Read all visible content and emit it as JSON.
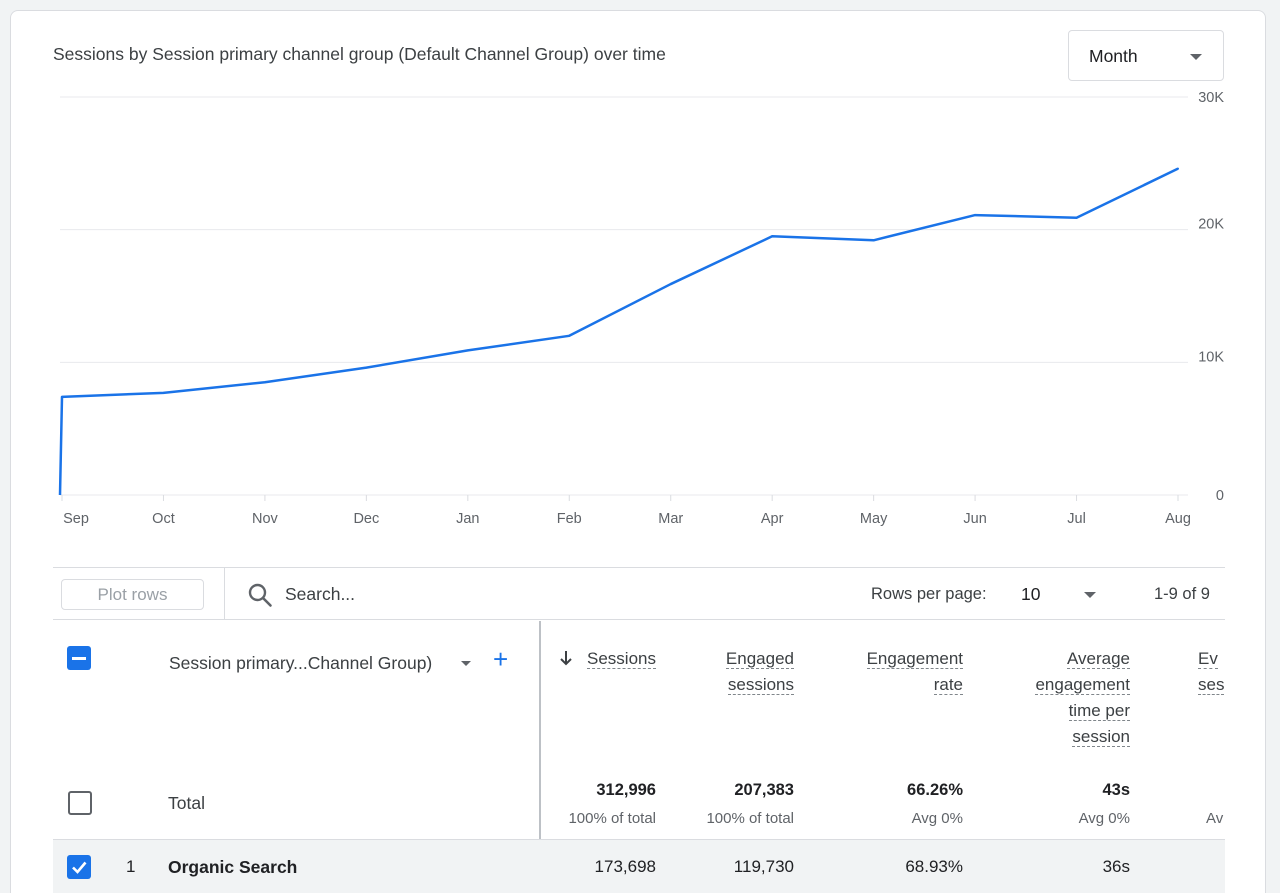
{
  "chart_card": {
    "title": "Sessions by Session primary channel group (Default Channel Group) over time",
    "period_select": {
      "value": "Month"
    }
  },
  "chart_data": {
    "type": "line",
    "title": "Sessions by Session primary channel group (Default Channel Group) over time",
    "x": [
      "Sep",
      "Oct",
      "Nov",
      "Dec",
      "Jan",
      "Feb",
      "Mar",
      "Apr",
      "May",
      "Jun",
      "Jul",
      "Aug"
    ],
    "series": [
      {
        "values": [
          7400,
          7700,
          8500,
          9600,
          10900,
          12000,
          15900,
          19500,
          19200,
          21100,
          20900,
          24600
        ],
        "color": "#1a73e8"
      }
    ],
    "y_start_value": 0,
    "ylim": [
      0,
      30000
    ],
    "yticks": [
      "0",
      "10K",
      "20K",
      "30K"
    ],
    "y_axis_side": "right",
    "grid": true
  },
  "toolbar": {
    "plot_rows_label": "Plot rows",
    "search_placeholder": "Search...",
    "rows_per_page_label": "Rows per page:",
    "rows_per_page_value": "10",
    "pagination": "1-9 of 9"
  },
  "table": {
    "dimension_header": "Session primary...Channel Group)",
    "add_dimension": "+",
    "columns": [
      {
        "key": "sessions",
        "lines": [
          "Sessions"
        ]
      },
      {
        "key": "engaged",
        "lines": [
          "Engaged",
          "sessions"
        ]
      },
      {
        "key": "rate",
        "lines": [
          "Engagement",
          "rate"
        ]
      },
      {
        "key": "avgtime",
        "lines": [
          "Average",
          "engagement",
          "time per",
          "session"
        ]
      },
      {
        "key": "events",
        "lines": [
          "Ev",
          "ses"
        ]
      }
    ],
    "total": {
      "label": "Total",
      "values": [
        "312,996",
        "207,383",
        "66.26%",
        "43s"
      ],
      "subs": [
        "100% of total",
        "100% of total",
        "Avg 0%",
        "Avg 0%",
        "Av"
      ]
    },
    "rows": [
      {
        "index": "1",
        "name": "Organic Search",
        "values": [
          "173,698",
          "119,730",
          "68.93%",
          "36s"
        ]
      }
    ]
  }
}
